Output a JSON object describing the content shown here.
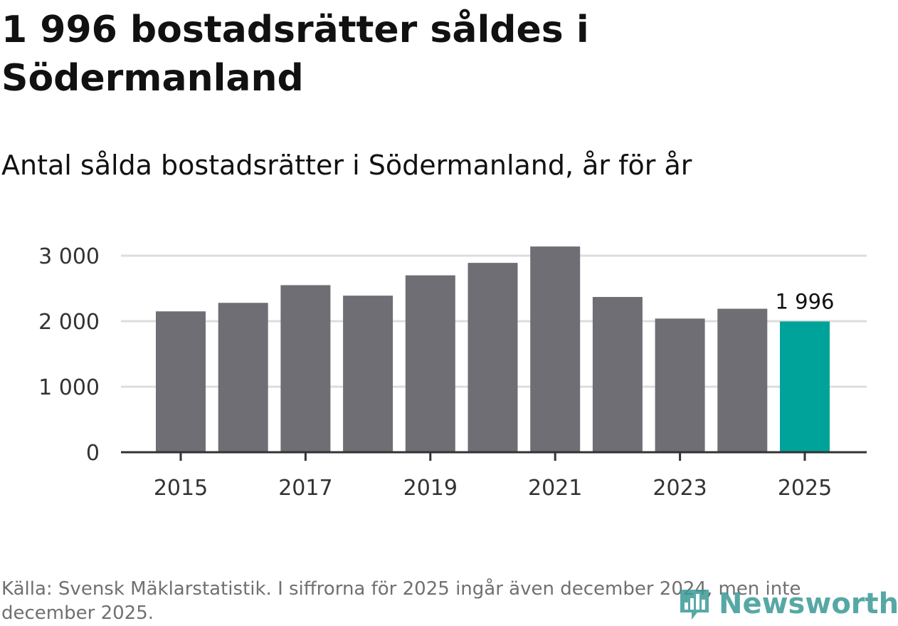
{
  "header": {
    "title": "1 996 bostadsrätter såldes i Södermanland",
    "subtitle": "Antal sålda bostadsrätter i Södermanland, år för år"
  },
  "footer": {
    "source": "Källa: Svensk Mäklarstatistik. I siffrorna för 2025 ingår även december 2024, men inte december 2025.",
    "brand": "Newsworthy"
  },
  "colors": {
    "bar_default": "#6f6e74",
    "bar_highlight": "#00a39a",
    "gridline": "#dddddd",
    "axis": "#333333",
    "brand": "#3a9a96"
  },
  "chart_data": {
    "type": "bar",
    "title": "Antal sålda bostadsrätter i Södermanland, år för år",
    "xlabel": "",
    "ylabel": "",
    "categories": [
      "2015",
      "2016",
      "2017",
      "2018",
      "2019",
      "2020",
      "2021",
      "2022",
      "2023",
      "2024",
      "2025"
    ],
    "values": [
      2150,
      2280,
      2550,
      2390,
      2700,
      2890,
      3140,
      2370,
      2040,
      2190,
      1996
    ],
    "highlight_index": 10,
    "ylim": [
      0,
      3000
    ],
    "yticks": [
      0,
      1000,
      2000,
      3000
    ],
    "ytick_labels": [
      "0",
      "1 000",
      "2 000",
      "3 000"
    ],
    "xtick_labels": [
      "2015",
      "",
      "2017",
      "",
      "2019",
      "",
      "2021",
      "",
      "2023",
      "",
      "2025"
    ],
    "annotations": [
      {
        "index": 10,
        "text": "1 996"
      }
    ],
    "grid": true
  }
}
